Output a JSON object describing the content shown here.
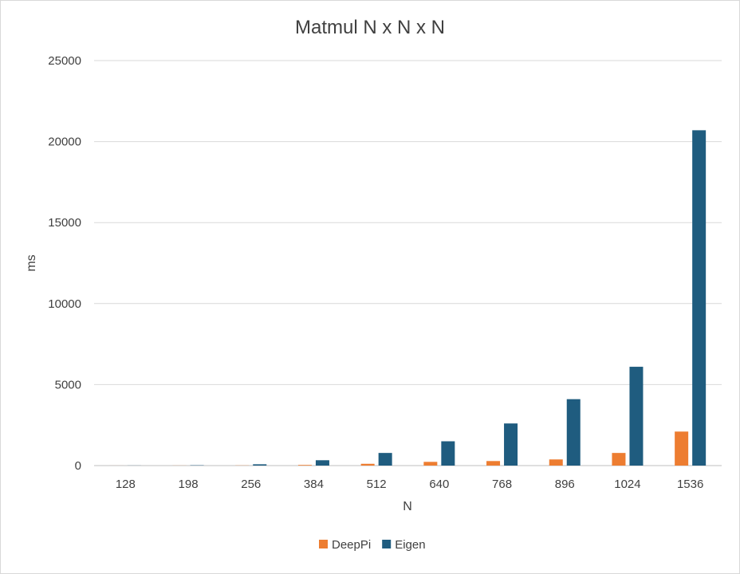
{
  "chart_data": {
    "type": "bar",
    "title": "Matmul N x N x N",
    "xlabel": "N",
    "ylabel": "ms",
    "categories": [
      "128",
      "198",
      "256",
      "384",
      "512",
      "640",
      "768",
      "896",
      "1024",
      "1536"
    ],
    "series": [
      {
        "name": "DeepPi",
        "color": "#ED7D31",
        "values": [
          2,
          5,
          10,
          40,
          110,
          230,
          280,
          380,
          780,
          2100
        ]
      },
      {
        "name": "Eigen",
        "color": "#1F5C7F",
        "values": [
          5,
          20,
          80,
          330,
          780,
          1500,
          2600,
          4100,
          6100,
          20700
        ]
      }
    ],
    "ylim": [
      0,
      25000
    ],
    "yticks": [
      0,
      5000,
      10000,
      15000,
      20000,
      25000
    ],
    "grid": true,
    "legend": "bottom"
  }
}
